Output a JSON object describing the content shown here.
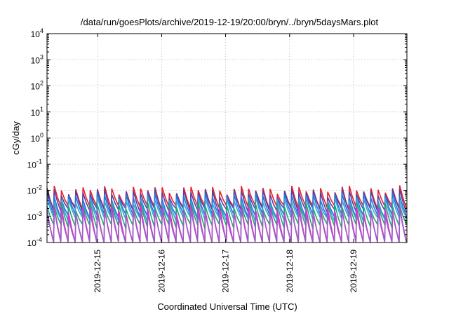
{
  "chart_data": {
    "type": "line",
    "title": "/data/run/goesPlots/archive/2019-12-19/20:00/bryn/../bryn/5daysMars.plot",
    "xlabel": "Coordinated Universal Time (UTC)",
    "ylabel": "cGy/day",
    "yscale": "log",
    "ylim": [
      0.0001,
      10000
    ],
    "xlim": [
      "2019-12-14T05:00",
      "2019-12-19T20:00"
    ],
    "grid": true,
    "x_ticks": [
      "2019-12-15",
      "2019-12-16",
      "2019-12-17",
      "2019-12-18",
      "2019-12-19"
    ],
    "y_ticks": [
      {
        "base": "10",
        "exp": "-4",
        "value": 0.0001
      },
      {
        "base": "10",
        "exp": "-3",
        "value": 0.001
      },
      {
        "base": "10",
        "exp": "-2",
        "value": 0.01
      },
      {
        "base": "10",
        "exp": "-1",
        "value": 0.1
      },
      {
        "base": "10",
        "exp": "0",
        "value": 1
      },
      {
        "base": "10",
        "exp": "1",
        "value": 10
      },
      {
        "base": "10",
        "exp": "2",
        "value": 100
      },
      {
        "base": "10",
        "exp": "3",
        "value": 1000
      },
      {
        "base": "10",
        "exp": "4",
        "value": 10000
      }
    ],
    "pattern": {
      "description": "sawtooth decay, one cycle per ~2.7 h",
      "cycles": 50,
      "peaks_jan": "values at the start of each cycle"
    },
    "series": [
      {
        "color": "#e8202a",
        "peak": 0.011,
        "trough": 0.0022
      },
      {
        "color": "#5a3fa0",
        "peak": 0.0085,
        "trough": 0.0017
      },
      {
        "color": "#1f77e0",
        "peak": 0.0058,
        "trough": 0.00105
      },
      {
        "color": "#3aa0d8",
        "peak": 0.0042,
        "trough": 0.00078
      },
      {
        "color": "#1fa870",
        "peak": 0.0026,
        "trough": 0.00042
      },
      {
        "color": "#ee22dd",
        "peak": 0.0019,
        "trough": 9.5e-05
      },
      {
        "color": "#9a5fc0",
        "peak": 0.0014,
        "trough": 9e-05
      }
    ]
  }
}
